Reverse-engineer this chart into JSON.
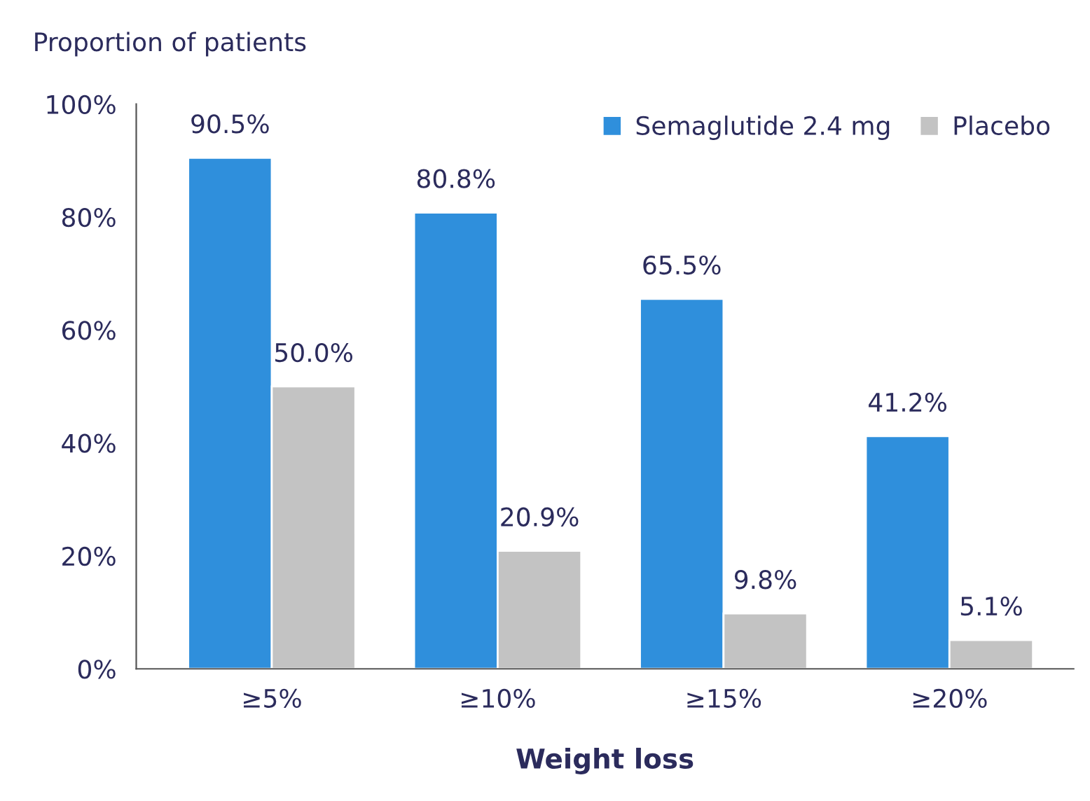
{
  "chart_data": {
    "type": "bar",
    "ylabel": "Proportion of patients",
    "xlabel": "Weight loss",
    "categories": [
      "≥5%",
      "≥10%",
      "≥15%",
      "≥20%"
    ],
    "series": [
      {
        "name": "Semaglutide 2.4 mg",
        "color": "#2f8fdc",
        "values": [
          90.5,
          80.8,
          65.5,
          41.2
        ],
        "value_labels": [
          "90.5%",
          "80.8%",
          "65.5%",
          "41.2%"
        ]
      },
      {
        "name": "Placebo",
        "color": "#c3c3c3",
        "values": [
          50.0,
          20.9,
          9.8,
          5.1
        ],
        "value_labels": [
          "50.0%",
          "20.9%",
          "9.8%",
          "5.1%"
        ]
      }
    ],
    "ylim": [
      0,
      100
    ],
    "yticks": [
      {
        "value": 0,
        "label": "0%"
      },
      {
        "value": 20,
        "label": "20%"
      },
      {
        "value": 40,
        "label": "40%"
      },
      {
        "value": 60,
        "label": "60%"
      },
      {
        "value": 80,
        "label": "80%"
      },
      {
        "value": 100,
        "label": "100%"
      }
    ],
    "grid": false,
    "legend": "top right"
  }
}
